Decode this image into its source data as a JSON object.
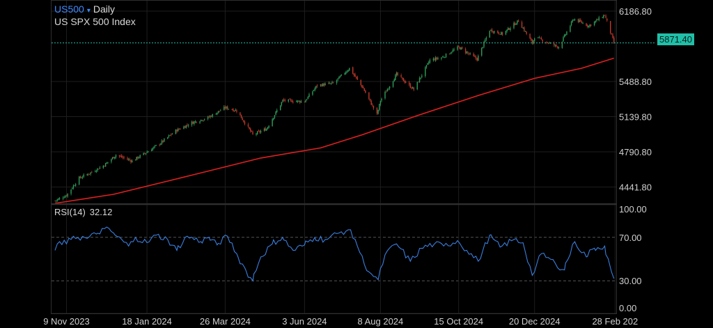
{
  "header": {
    "symbol": "US500",
    "symbol_caret": "▾",
    "timeframe": "Daily",
    "description": "US SPX 500 Index"
  },
  "rsi_header": {
    "label": "RSI(14)",
    "value": "32.12"
  },
  "last_price_label": "5871.40",
  "colors": {
    "background": "#000000",
    "candle_up": "#2e9e5b",
    "candle_down": "#c0392b",
    "moving_average": "#e02020",
    "rsi_line": "#3a7fe0",
    "last_price_line": "#20c0a8",
    "symbol_accent": "#3d8bff"
  },
  "chart_data": [
    {
      "type": "candlestick",
      "pane": "price",
      "y_axis_ticks": [
        6186.8,
        5488.8,
        5139.8,
        4790.8,
        4441.8
      ],
      "y_axis_tick_labels": [
        "6186.80",
        "5488.80",
        "5139.80",
        "4790.80",
        "4441.80"
      ],
      "ylim": [
        4280,
        6290
      ],
      "x_ticks": [
        "9 Nov 2023",
        "18 Jan 2024",
        "26 Mar 2024",
        "3 Jun 2024",
        "8 Aug 2024",
        "15 Oct 2024",
        "20 Dec 2024",
        "28 Feb 202"
      ],
      "last_price": 5871.4,
      "close_path": [
        [
          "2023-10-30",
          4305
        ],
        [
          "2023-11-09",
          4360
        ],
        [
          "2023-11-20",
          4530
        ],
        [
          "2023-12-01",
          4590
        ],
        [
          "2023-12-12",
          4660
        ],
        [
          "2023-12-22",
          4760
        ],
        [
          "2024-01-05",
          4700
        ],
        [
          "2024-01-18",
          4790
        ],
        [
          "2024-01-30",
          4880
        ],
        [
          "2024-02-12",
          5000
        ],
        [
          "2024-02-26",
          5080
        ],
        [
          "2024-03-11",
          5130
        ],
        [
          "2024-03-26",
          5230
        ],
        [
          "2024-04-05",
          5200
        ],
        [
          "2024-04-19",
          4960
        ],
        [
          "2024-05-01",
          5020
        ],
        [
          "2024-05-15",
          5300
        ],
        [
          "2024-06-03",
          5290
        ],
        [
          "2024-06-14",
          5450
        ],
        [
          "2024-06-28",
          5470
        ],
        [
          "2024-07-12",
          5620
        ],
        [
          "2024-07-24",
          5420
        ],
        [
          "2024-08-05",
          5160
        ],
        [
          "2024-08-08",
          5300
        ],
        [
          "2024-08-22",
          5560
        ],
        [
          "2024-09-06",
          5410
        ],
        [
          "2024-09-20",
          5700
        ],
        [
          "2024-10-01",
          5730
        ],
        [
          "2024-10-15",
          5830
        ],
        [
          "2024-10-31",
          5710
        ],
        [
          "2024-11-11",
          6000
        ],
        [
          "2024-11-22",
          5960
        ],
        [
          "2024-12-06",
          6090
        ],
        [
          "2024-12-18",
          5870
        ],
        [
          "2024-12-20",
          5930
        ],
        [
          "2025-01-10",
          5830
        ],
        [
          "2025-01-23",
          6110
        ],
        [
          "2025-02-05",
          6040
        ],
        [
          "2025-02-19",
          6150
        ],
        [
          "2025-02-27",
          5871.4
        ]
      ],
      "moving_average_path": [
        [
          "2023-10-30",
          4280
        ],
        [
          "2023-12-20",
          4370
        ],
        [
          "2024-02-26",
          4560
        ],
        [
          "2024-04-26",
          4730
        ],
        [
          "2024-06-17",
          4830
        ],
        [
          "2024-07-23",
          4960
        ],
        [
          "2024-09-09",
          5150
        ],
        [
          "2024-11-01",
          5350
        ],
        [
          "2024-12-20",
          5520
        ],
        [
          "2025-01-30",
          5620
        ],
        [
          "2025-02-27",
          5720
        ]
      ]
    },
    {
      "type": "line",
      "pane": "indicator",
      "name": "RSI(14)",
      "y_axis_ticks": [
        100,
        70,
        30,
        0
      ],
      "y_axis_tick_labels": [
        "100.00",
        "70.00",
        "30.00",
        "0.00"
      ],
      "ylim": [
        0,
        100
      ],
      "reference_lines": [
        70,
        30
      ],
      "last_value": 32.12,
      "points": [
        [
          "2023-10-30",
          58
        ],
        [
          "2023-11-03",
          66
        ],
        [
          "2023-11-09",
          64
        ],
        [
          "2023-11-15",
          71
        ],
        [
          "2023-11-27",
          69
        ],
        [
          "2023-12-05",
          73
        ],
        [
          "2023-12-12",
          78
        ],
        [
          "2023-12-20",
          74
        ],
        [
          "2024-01-02",
          62
        ],
        [
          "2024-01-08",
          70
        ],
        [
          "2024-01-18",
          65
        ],
        [
          "2024-01-26",
          72
        ],
        [
          "2024-02-05",
          68
        ],
        [
          "2024-02-13",
          58
        ],
        [
          "2024-02-22",
          71
        ],
        [
          "2024-03-05",
          66
        ],
        [
          "2024-03-12",
          70
        ],
        [
          "2024-03-19",
          63
        ],
        [
          "2024-03-28",
          71
        ],
        [
          "2024-04-05",
          55
        ],
        [
          "2024-04-12",
          42
        ],
        [
          "2024-04-19",
          30
        ],
        [
          "2024-04-26",
          52
        ],
        [
          "2024-05-06",
          64
        ],
        [
          "2024-05-15",
          70
        ],
        [
          "2024-05-24",
          58
        ],
        [
          "2024-06-03",
          63
        ],
        [
          "2024-06-12",
          70
        ],
        [
          "2024-06-21",
          68
        ],
        [
          "2024-07-03",
          74
        ],
        [
          "2024-07-11",
          77
        ],
        [
          "2024-07-17",
          68
        ],
        [
          "2024-07-25",
          45
        ],
        [
          "2024-08-02",
          34
        ],
        [
          "2024-08-06",
          31
        ],
        [
          "2024-08-12",
          54
        ],
        [
          "2024-08-22",
          64
        ],
        [
          "2024-09-03",
          48
        ],
        [
          "2024-09-13",
          60
        ],
        [
          "2024-09-24",
          64
        ],
        [
          "2024-10-02",
          62
        ],
        [
          "2024-10-14",
          67
        ],
        [
          "2024-10-22",
          58
        ],
        [
          "2024-11-01",
          48
        ],
        [
          "2024-11-11",
          72
        ],
        [
          "2024-11-20",
          61
        ],
        [
          "2024-12-02",
          68
        ],
        [
          "2024-12-10",
          65
        ],
        [
          "2024-12-18",
          35
        ],
        [
          "2024-12-26",
          55
        ],
        [
          "2025-01-07",
          46
        ],
        [
          "2025-01-15",
          40
        ],
        [
          "2025-01-24",
          66
        ],
        [
          "2025-02-03",
          52
        ],
        [
          "2025-02-10",
          60
        ],
        [
          "2025-02-19",
          62
        ],
        [
          "2025-02-24",
          42
        ],
        [
          "2025-02-27",
          32.12
        ]
      ]
    }
  ]
}
